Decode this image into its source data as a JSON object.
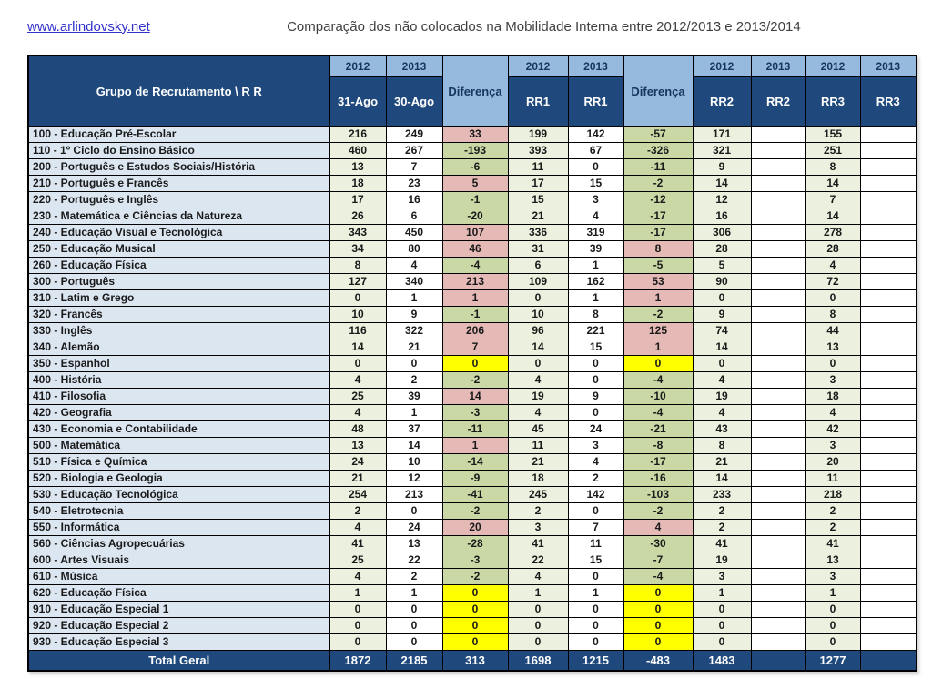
{
  "header": {
    "site_link": "www.arlindovsky.net",
    "title": "Comparação dos não colocados na Mobilidade Interna entre 2012/2013 e 2013/2014"
  },
  "colors": {
    "header_dark": "#1F497D",
    "header_light": "#96B9DE",
    "label_bg": "#DCE6F1",
    "col2012_bg": "#EBF1DE",
    "col2013_bg": "#FFFFFF",
    "diff_positive": "#E5B9B5",
    "diff_negative": "#C9D8A5",
    "diff_zero": "#FFFF00",
    "total_bg": "#1F497D",
    "link_color": "#3333CC",
    "title_color": "#404040"
  },
  "table": {
    "corner_label": "Grupo de Recrutamento \\ R R",
    "columns": [
      {
        "year": "2012",
        "label": "31-Ago",
        "kind": "y2012"
      },
      {
        "year": "2013",
        "label": "30-Ago",
        "kind": "y2013"
      },
      {
        "label": "Diferença",
        "kind": "diff"
      },
      {
        "year": "2012",
        "label": "RR1",
        "kind": "y2012"
      },
      {
        "year": "2013",
        "label": "RR1",
        "kind": "y2013"
      },
      {
        "label": "Diferença",
        "kind": "diff"
      },
      {
        "year": "2012",
        "label": "RR2",
        "kind": "y2012"
      },
      {
        "year": "2013",
        "label": "RR2",
        "kind": "y2013"
      },
      {
        "year": "2012",
        "label": "RR3",
        "kind": "y2012"
      },
      {
        "year": "2013",
        "label": "RR3",
        "kind": "y2013"
      }
    ],
    "rows": [
      {
        "label": "100 - Educação Pré-Escolar",
        "values": [
          216,
          249,
          33,
          199,
          142,
          -57,
          171,
          "",
          155,
          ""
        ]
      },
      {
        "label": "110 - 1º Ciclo do Ensino Básico",
        "values": [
          460,
          267,
          -193,
          393,
          67,
          -326,
          321,
          "",
          251,
          ""
        ]
      },
      {
        "label": "200 - Português e Estudos Sociais/História",
        "values": [
          13,
          7,
          -6,
          11,
          0,
          -11,
          9,
          "",
          8,
          ""
        ]
      },
      {
        "label": "210 - Português e Francês",
        "values": [
          18,
          23,
          5,
          17,
          15,
          -2,
          14,
          "",
          14,
          ""
        ]
      },
      {
        "label": "220 - Português e Inglês",
        "values": [
          17,
          16,
          -1,
          15,
          3,
          -12,
          12,
          "",
          7,
          ""
        ]
      },
      {
        "label": "230 - Matemática e Ciências da Natureza",
        "values": [
          26,
          6,
          -20,
          21,
          4,
          -17,
          16,
          "",
          14,
          ""
        ]
      },
      {
        "label": "240 - Educação Visual e Tecnológica",
        "values": [
          343,
          450,
          107,
          336,
          319,
          -17,
          306,
          "",
          278,
          ""
        ]
      },
      {
        "label": "250 - Educação Musical",
        "values": [
          34,
          80,
          46,
          31,
          39,
          8,
          28,
          "",
          28,
          ""
        ]
      },
      {
        "label": "260 - Educação Física",
        "values": [
          8,
          4,
          -4,
          6,
          1,
          -5,
          5,
          "",
          4,
          ""
        ]
      },
      {
        "label": "300 - Português",
        "values": [
          127,
          340,
          213,
          109,
          162,
          53,
          90,
          "",
          72,
          ""
        ]
      },
      {
        "label": "310 - Latim e Grego",
        "values": [
          0,
          1,
          1,
          0,
          1,
          1,
          0,
          "",
          0,
          ""
        ]
      },
      {
        "label": "320 - Francês",
        "values": [
          10,
          9,
          -1,
          10,
          8,
          -2,
          9,
          "",
          8,
          ""
        ]
      },
      {
        "label": "330 - Inglês",
        "values": [
          116,
          322,
          206,
          96,
          221,
          125,
          74,
          "",
          44,
          ""
        ]
      },
      {
        "label": "340 - Alemão",
        "values": [
          14,
          21,
          7,
          14,
          15,
          1,
          14,
          "",
          13,
          ""
        ]
      },
      {
        "label": "350 - Espanhol",
        "values": [
          0,
          0,
          0,
          0,
          0,
          0,
          0,
          "",
          0,
          ""
        ]
      },
      {
        "label": "400 - História",
        "values": [
          4,
          2,
          -2,
          4,
          0,
          -4,
          4,
          "",
          3,
          ""
        ]
      },
      {
        "label": "410 - Filosofia",
        "values": [
          25,
          39,
          14,
          19,
          9,
          -10,
          19,
          "",
          18,
          ""
        ]
      },
      {
        "label": "420 - Geografia",
        "values": [
          4,
          1,
          -3,
          4,
          0,
          -4,
          4,
          "",
          4,
          ""
        ]
      },
      {
        "label": "430 - Economia e Contabilidade",
        "values": [
          48,
          37,
          -11,
          45,
          24,
          -21,
          43,
          "",
          42,
          ""
        ]
      },
      {
        "label": "500 - Matemática",
        "values": [
          13,
          14,
          1,
          11,
          3,
          -8,
          8,
          "",
          3,
          ""
        ]
      },
      {
        "label": "510 - Física e Química",
        "values": [
          24,
          10,
          -14,
          21,
          4,
          -17,
          21,
          "",
          20,
          ""
        ]
      },
      {
        "label": "520 - Biologia e Geologia",
        "values": [
          21,
          12,
          -9,
          18,
          2,
          -16,
          14,
          "",
          11,
          ""
        ]
      },
      {
        "label": "530 - Educação Tecnológica",
        "values": [
          254,
          213,
          -41,
          245,
          142,
          -103,
          233,
          "",
          218,
          ""
        ]
      },
      {
        "label": "540 - Eletrotecnia",
        "values": [
          2,
          0,
          -2,
          2,
          0,
          -2,
          2,
          "",
          2,
          ""
        ]
      },
      {
        "label": "550 - Informática",
        "values": [
          4,
          24,
          20,
          3,
          7,
          4,
          2,
          "",
          2,
          ""
        ]
      },
      {
        "label": "560 - Ciências Agropecuárias",
        "values": [
          41,
          13,
          -28,
          41,
          11,
          -30,
          41,
          "",
          41,
          ""
        ]
      },
      {
        "label": "600 - Artes Visuais",
        "values": [
          25,
          22,
          -3,
          22,
          15,
          -7,
          19,
          "",
          13,
          ""
        ]
      },
      {
        "label": "610 - Música",
        "values": [
          4,
          2,
          -2,
          4,
          0,
          -4,
          3,
          "",
          3,
          ""
        ]
      },
      {
        "label": "620 - Educação Física",
        "values": [
          1,
          1,
          0,
          1,
          1,
          0,
          1,
          "",
          1,
          ""
        ]
      },
      {
        "label": "910 - Educação Especial 1",
        "values": [
          0,
          0,
          0,
          0,
          0,
          0,
          0,
          "",
          0,
          ""
        ]
      },
      {
        "label": "920 - Educação Especial 2",
        "values": [
          0,
          0,
          0,
          0,
          0,
          0,
          0,
          "",
          0,
          ""
        ]
      },
      {
        "label": "930 - Educação Especial 3",
        "values": [
          0,
          0,
          0,
          0,
          0,
          0,
          0,
          "",
          0,
          ""
        ]
      }
    ],
    "total": {
      "label": "Total Geral",
      "values": [
        1872,
        2185,
        313,
        1698,
        1215,
        -483,
        1483,
        "",
        1277,
        ""
      ]
    }
  }
}
